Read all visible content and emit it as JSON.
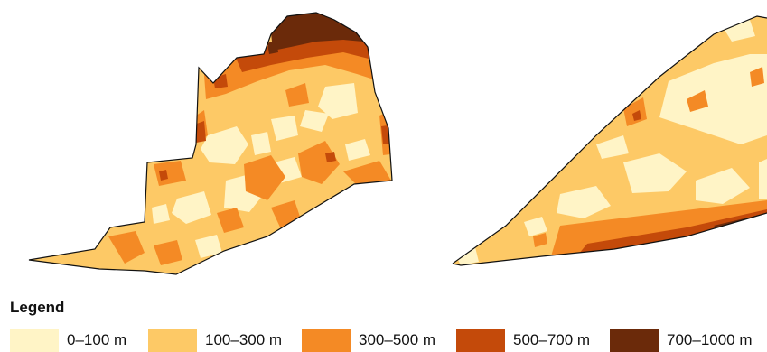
{
  "legend": {
    "title": "Legend",
    "classes": [
      {
        "label": "0–100 m",
        "color": "#FFF4C6"
      },
      {
        "label": "100–300 m",
        "color": "#FDC966"
      },
      {
        "label": "300–500 m",
        "color": "#F48A25"
      },
      {
        "label": "500–700 m",
        "color": "#C44A0A"
      },
      {
        "label": "700–1000 m",
        "color": "#6B2A0A"
      }
    ]
  },
  "outline_color": "#111111"
}
